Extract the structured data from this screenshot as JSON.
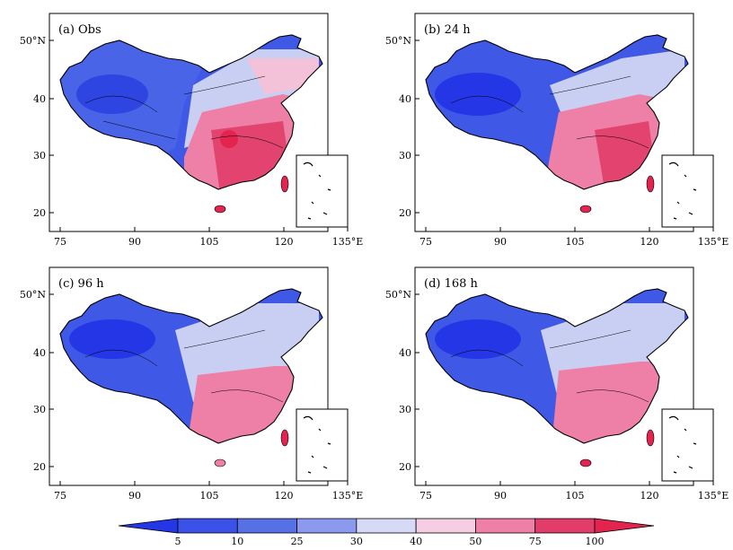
{
  "panels": [
    {
      "label": "(a) Obs",
      "state": "obs"
    },
    {
      "label": "(b) 24  h",
      "state": "f24"
    },
    {
      "label": "(c) 96  h",
      "state": "f96"
    },
    {
      "label": "(d) 168  h",
      "state": "f168"
    }
  ],
  "lon_ticks": [
    "75",
    "90",
    "105",
    "120",
    "135°E"
  ],
  "lat_ticks": [
    "50°N",
    "40",
    "30",
    "20"
  ],
  "colorbar": {
    "levels": [
      "5",
      "10",
      "25",
      "30",
      "40",
      "50",
      "75",
      "100"
    ],
    "colors": [
      "#2436e6",
      "#3b52e8",
      "#5670e6",
      "#8b9aee",
      "#d6daf5",
      "#f7cde3",
      "#ee7fa6",
      "#e23c6b",
      "#e3244f"
    ]
  }
}
